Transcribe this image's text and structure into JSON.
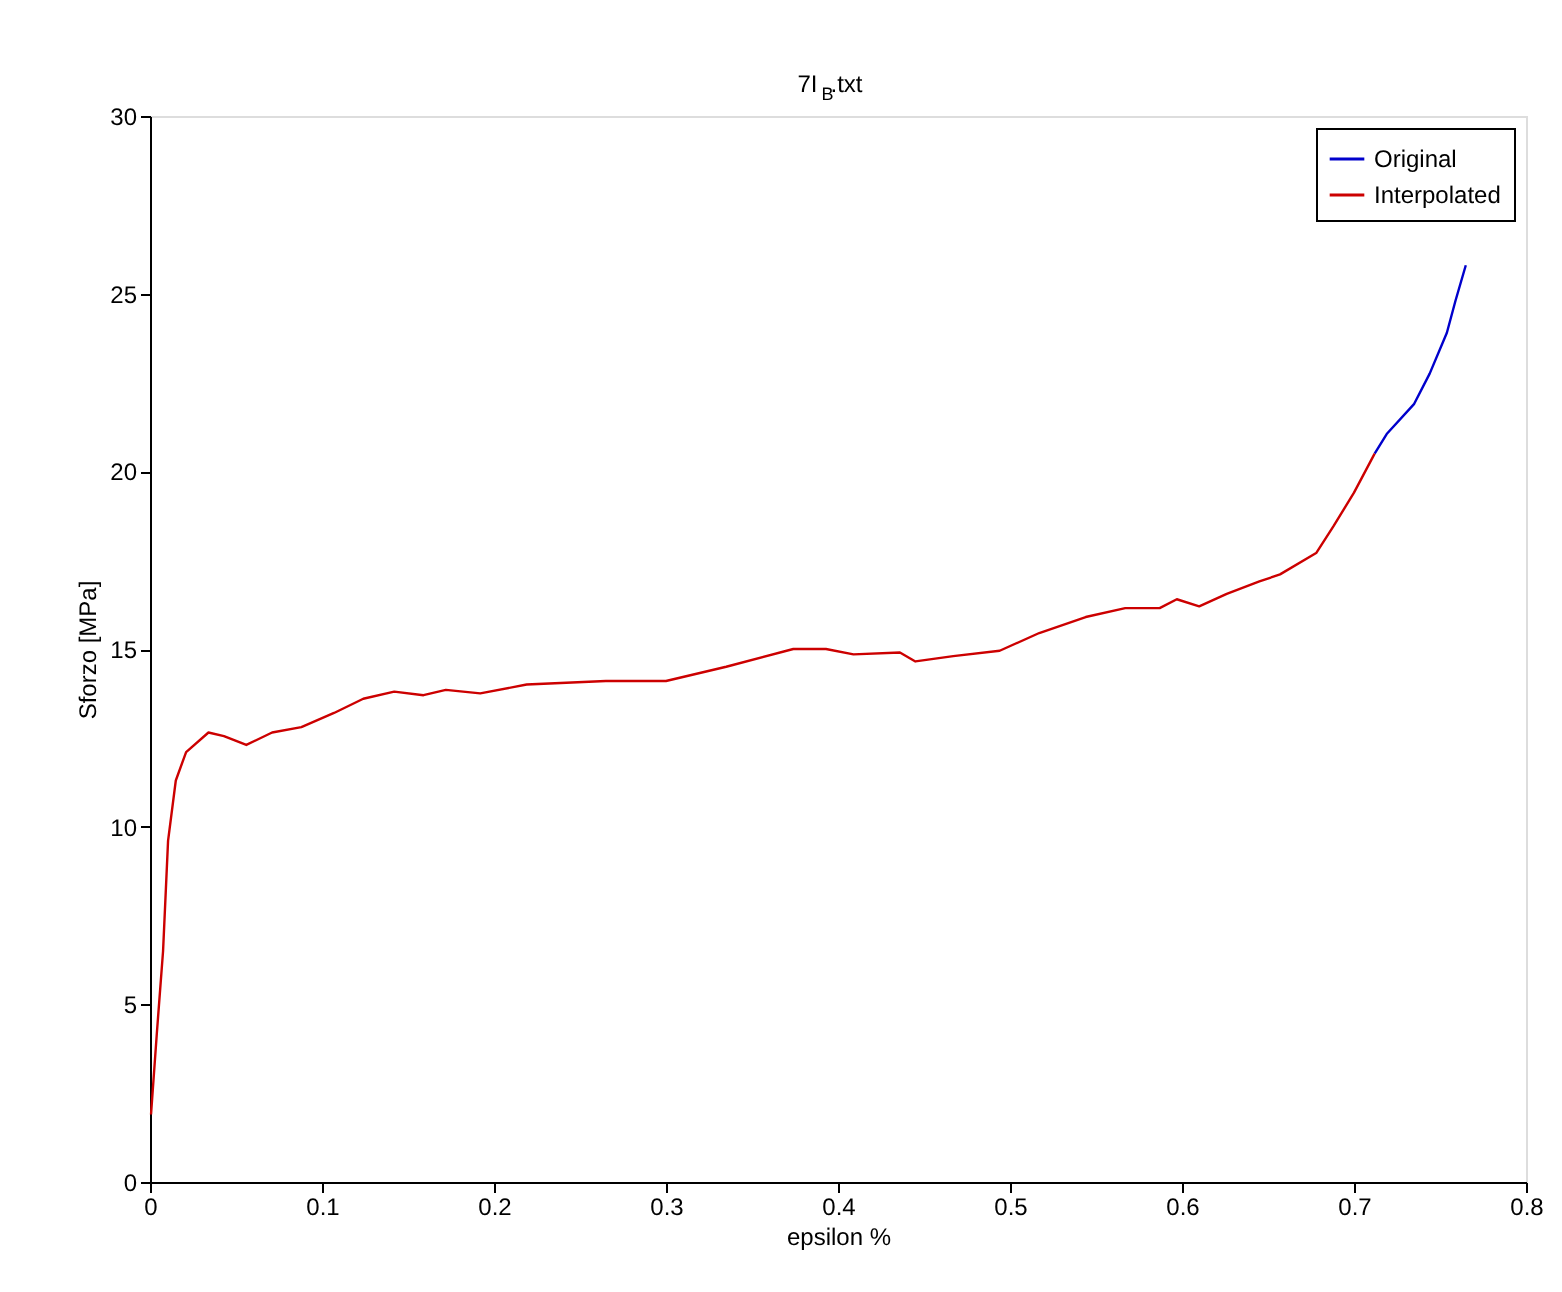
{
  "chart_data": {
    "type": "line",
    "title": "7I$_{B}$.txt",
    "xlabel": "epsilon %",
    "ylabel": "Sforzo [MPa]",
    "xlim": [
      0,
      0.8
    ],
    "xticks": [
      0,
      0.1,
      0.2,
      0.3,
      0.4,
      0.5,
      0.6,
      0.7,
      0.8
    ],
    "ylim": [
      0,
      30
    ],
    "yticks": [
      0,
      5,
      10,
      15,
      20,
      25,
      30
    ],
    "grid": false,
    "legend": "top right",
    "line_style": "solid",
    "marker": "none",
    "series": [
      {
        "name": "Original",
        "color": "#0000cc",
        "x": [
          0.712,
          0.719,
          0.735,
          0.744,
          0.754,
          0.759,
          0.765
        ],
        "values": [
          20.5,
          21.05,
          21.9,
          22.75,
          23.9,
          24.8,
          25.8
        ]
      },
      {
        "name": "Interpolated",
        "color": "#cc0000",
        "x": [
          0.0006,
          0.004,
          0.0076,
          0.0105,
          0.015,
          0.021,
          0.034,
          0.043,
          0.056,
          0.071,
          0.088,
          0.107,
          0.124,
          0.142,
          0.159,
          0.172,
          0.192,
          0.219,
          0.265,
          0.3,
          0.335,
          0.374,
          0.393,
          0.409,
          0.436,
          0.445,
          0.467,
          0.494,
          0.517,
          0.544,
          0.567,
          0.587,
          0.597,
          0.61,
          0.626,
          0.645,
          0.657,
          0.678,
          0.688,
          0.7,
          0.712
        ],
        "values": [
          1.9,
          4.2,
          6.5,
          9.6,
          11.3,
          12.1,
          12.65,
          12.55,
          12.3,
          12.65,
          12.8,
          13.2,
          13.6,
          13.8,
          13.7,
          13.85,
          13.75,
          14.0,
          14.1,
          14.1,
          14.5,
          15.0,
          15.0,
          14.85,
          14.9,
          14.65,
          14.8,
          14.95,
          15.45,
          15.9,
          16.15,
          16.15,
          16.4,
          16.2,
          16.55,
          16.9,
          17.1,
          17.7,
          18.45,
          19.4,
          20.5
        ]
      }
    ]
  }
}
